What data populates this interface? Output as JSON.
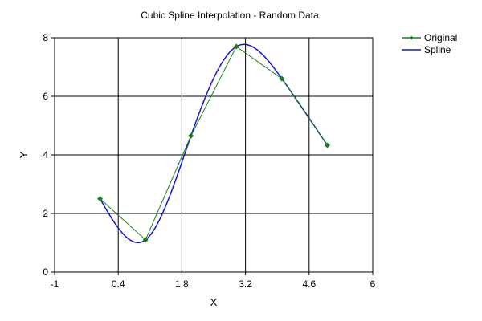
{
  "chart_data": {
    "type": "line",
    "title": "Cubic Spline Interpolation - Random Data",
    "xlabel": "X",
    "ylabel": "Y",
    "xlim": [
      -1,
      6
    ],
    "ylim": [
      0,
      8
    ],
    "x_ticks": [
      "-1",
      "0.4",
      "1.8",
      "3.2",
      "4.6",
      "6"
    ],
    "y_ticks": [
      "0",
      "2",
      "4",
      "6",
      "8"
    ],
    "grid": true,
    "legend_position": "top-right",
    "series": [
      {
        "name": "Original",
        "color": "#1e7d1e",
        "marker": "diamond",
        "x": [
          0,
          1,
          2,
          3,
          4,
          5
        ],
        "y": [
          2.5,
          1.1,
          4.65,
          7.7,
          6.6,
          4.33
        ]
      },
      {
        "name": "Spline",
        "color": "#1414d6",
        "marker": "none",
        "interpolation": "natural cubic spline of Original"
      }
    ]
  }
}
